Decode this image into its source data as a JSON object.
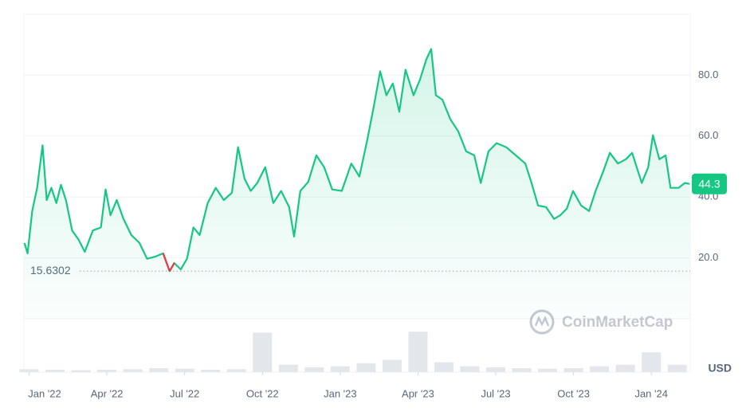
{
  "chart_data": {
    "type": "line",
    "x": [
      -0.18,
      -0.06,
      0.12,
      0.31,
      0.52,
      0.68,
      0.86,
      1.05,
      1.23,
      1.42,
      1.66,
      1.91,
      2.15,
      2.46,
      2.77,
      2.95,
      3.14,
      3.38,
      3.63,
      3.94,
      4.25,
      4.55,
      4.86,
      5.17,
      5.42,
      5.6,
      5.85,
      6.09,
      6.34,
      6.58,
      6.89,
      7.2,
      7.51,
      7.82,
      8.06,
      8.31,
      8.55,
      8.8,
      9.11,
      9.42,
      9.72,
      10.03,
      10.22,
      10.46,
      10.77,
      11.08,
      11.38,
      11.69,
      12.06,
      12.43,
      12.74,
      13.05,
      13.29,
      13.54,
      13.78,
      14.03,
      14.28,
      14.52,
      14.83,
      15.08,
      15.32,
      15.51,
      15.69,
      15.94,
      16.25,
      16.55,
      16.86,
      17.17,
      17.42,
      17.72,
      18.03,
      18.4,
      18.77,
      19.14,
      19.38,
      19.63,
      19.94,
      20.25,
      20.49,
      20.74,
      20.98,
      21.29,
      21.6,
      21.85,
      22.15,
      22.4,
      22.71,
      23.02,
      23.26,
      23.63,
      23.88,
      24.06,
      24.31,
      24.55,
      24.74,
      25.05,
      25.29,
      25.48
    ],
    "series": [
      {
        "color": "#16c784",
        "low_color": "#ea3943",
        "values": [
          24.9,
          21.5,
          35.4,
          43,
          57,
          39,
          43,
          38,
          44,
          39,
          29,
          26,
          22,
          29,
          30,
          42.5,
          34,
          39,
          33,
          27.5,
          25,
          19.7,
          20.4,
          21.5,
          15.63,
          18.3,
          16.2,
          19.7,
          30,
          27.5,
          38,
          43,
          39,
          41.4,
          56.4,
          46,
          42,
          44.6,
          49.8,
          38,
          42,
          36.7,
          27,
          42,
          45,
          53.7,
          49.8,
          42.5,
          42,
          51,
          46.7,
          59,
          69.5,
          81.3,
          73.4,
          77.3,
          68,
          81.8,
          73.4,
          78.6,
          85.2,
          88.6,
          73.4,
          72,
          65.5,
          61.6,
          55,
          53.7,
          44.6,
          55,
          57.7,
          56.4,
          53.7,
          51,
          44.6,
          37.2,
          36.7,
          32.8,
          34,
          36.2,
          42,
          37.2,
          35.4,
          42,
          48.5,
          54.5,
          51,
          52.4,
          54.5,
          44.6,
          49.8,
          60.3,
          52.4,
          53.7,
          43,
          43,
          44.6,
          44.3
        ]
      }
    ],
    "volume": {
      "color": "#e3e6ea",
      "x": [
        0,
        1,
        2,
        3,
        4,
        5,
        6,
        7,
        8,
        9,
        10,
        11,
        12,
        13,
        14,
        15,
        16,
        17,
        18,
        19,
        20,
        21,
        22,
        23,
        24,
        25
      ],
      "values": [
        0.6,
        0.5,
        0.4,
        0.5,
        0.6,
        0.8,
        0.7,
        0.5,
        0.6,
        8,
        1.5,
        1,
        1.2,
        1.8,
        2.5,
        8.2,
        2,
        1.2,
        1,
        0.8,
        0.7,
        0.8,
        1.2,
        1.5,
        4,
        1.5
      ],
      "ylim": [
        0,
        10
      ]
    },
    "xlim": [
      -0.2,
      25.5
    ],
    "xticks": [
      {
        "value": 0,
        "label": "Jan '22"
      },
      {
        "value": 3,
        "label": "Apr '22"
      },
      {
        "value": 6,
        "label": "Jul '22"
      },
      {
        "value": 9,
        "label": "Oct '22"
      },
      {
        "value": 12,
        "label": "Jan '23"
      },
      {
        "value": 15,
        "label": "Apr '23"
      },
      {
        "value": 18,
        "label": "Jul '23"
      },
      {
        "value": 21,
        "label": "Oct '23"
      },
      {
        "value": 24,
        "label": "Jan '24"
      }
    ],
    "ylim": [
      0,
      100
    ],
    "yticks": [
      {
        "value": 20,
        "label": "20.0"
      },
      {
        "value": 40,
        "label": "40.0"
      },
      {
        "value": 60,
        "label": "60.0"
      },
      {
        "value": 80,
        "label": "80.0"
      }
    ],
    "grid": true,
    "min_value": 15.6302,
    "current_value": 44.3,
    "currency": "USD",
    "watermark": "CoinMarketCap"
  }
}
